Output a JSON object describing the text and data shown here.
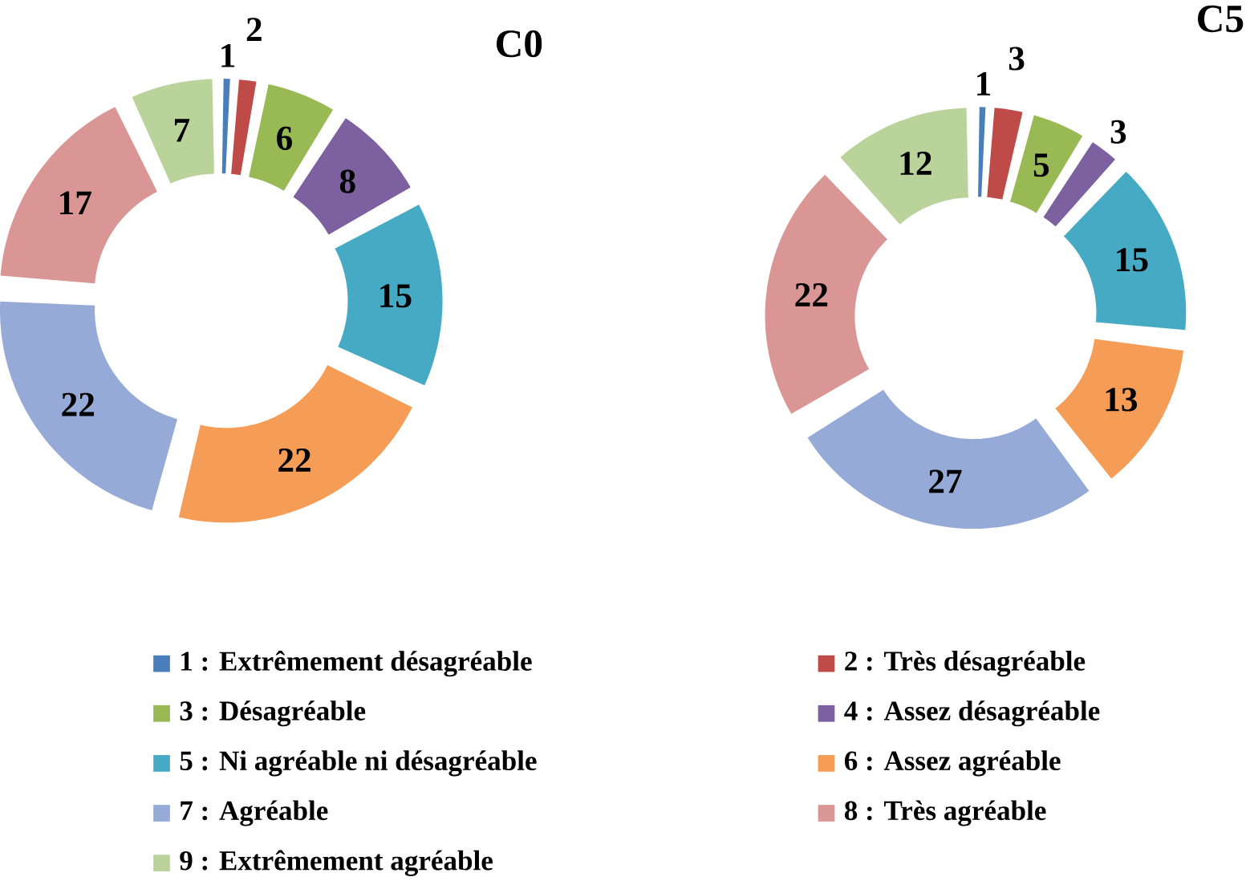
{
  "chart_data": [
    {
      "type": "donut",
      "title": "C0",
      "categories": [
        "1 : Extrêmement désagréable",
        "2 : Très désagréable",
        "3 : Désagréable",
        "4 : Assez désagréable",
        "5 : Ni agréable ni désagréable",
        "6 : Assez agréable",
        "7 : Agréable",
        "8 : Très agréable",
        "9 : Extrêmement  agréable"
      ],
      "values": [
        1,
        2,
        6,
        8,
        15,
        22,
        22,
        17,
        7
      ],
      "colors": [
        "#4a7ebb",
        "#be4b48",
        "#98b954",
        "#7d60a0",
        "#46aac5",
        "#f59d56",
        "#95aad6",
        "#d99694",
        "#b9d39a"
      ],
      "data_labels": true,
      "legend": "bottom"
    },
    {
      "type": "donut",
      "title": "C5",
      "categories": [
        null,
        null,
        null,
        null,
        null,
        null,
        null,
        null,
        null
      ],
      "values": [
        1,
        3,
        5,
        3,
        15,
        13,
        27,
        22,
        12
      ],
      "colors": [
        "#4a7ebb",
        "#be4b48",
        "#98b954",
        "#7d60a0",
        "#46aac5",
        "#f59d56",
        "#95aad6",
        "#d99694",
        "#b9d39a"
      ],
      "data_labels": true
    }
  ]
}
